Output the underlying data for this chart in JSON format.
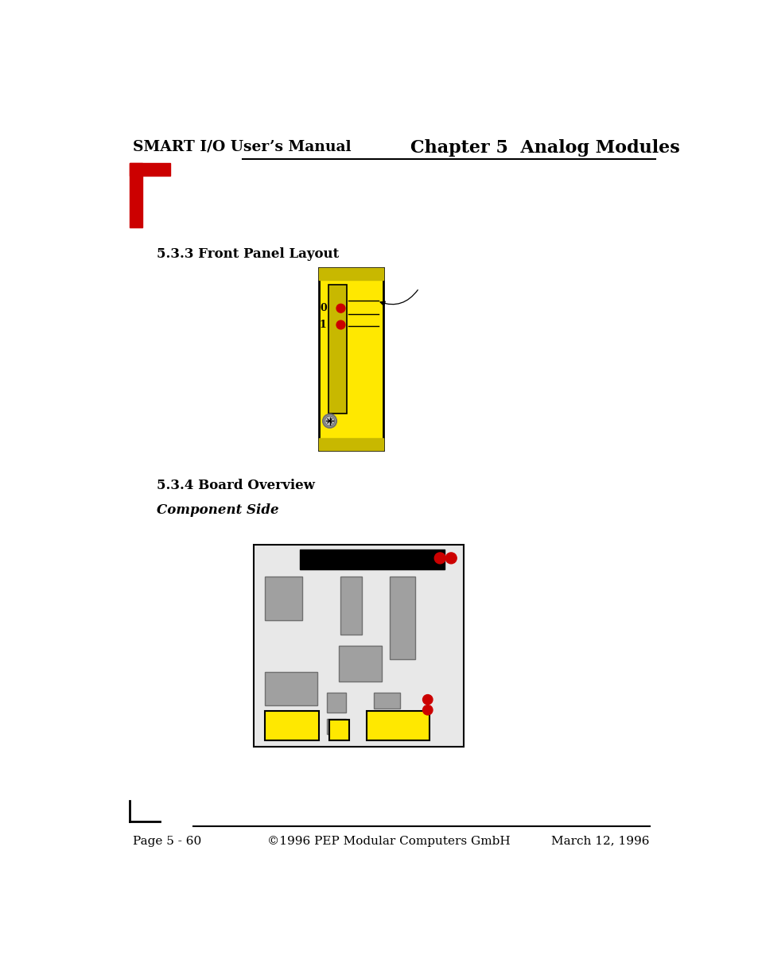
{
  "title_left": "SMART I/O User’s Manual",
  "title_right": "Chapter 5  Analog Modules",
  "section1_title": "5.3.3 Front Panel Layout",
  "section2_title": "5.3.4 Board Overview",
  "section3_title": "Component Side",
  "footer_left": "Page 5 - 60",
  "footer_center": "©1996 PEP Modular Computers GmbH",
  "footer_right": "March 12, 1996",
  "yellow": "#FFE800",
  "yellow_dark": "#C8B800",
  "red": "#CC0000",
  "black": "#000000",
  "gray": "#A0A0A0",
  "gray_dark": "#707070",
  "light_gray": "#E8E8E8",
  "white": "#FFFFFF",
  "bg": "#FFFFFF"
}
